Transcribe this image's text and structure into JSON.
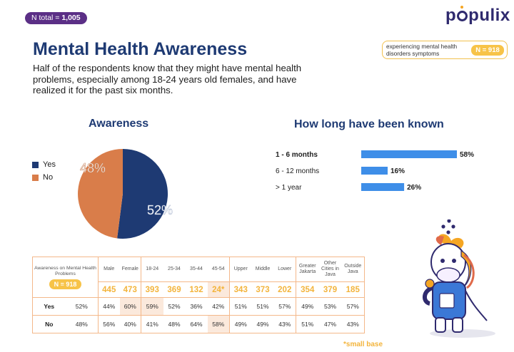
{
  "header": {
    "n_total_label": "N total = ",
    "n_total_value": "1,005",
    "logo": "populix",
    "title": "Mental Health Awareness",
    "subtitle": "Half of the respondents know that they might have mental health problems, especially among 18-24 years old females, and have realized it for the past six months.",
    "badge_text": "experiencing mental health disorders symptoms",
    "badge_n": "N = 918"
  },
  "colors": {
    "navy": "#1e3a73",
    "orange": "#d97d4a",
    "bar_blue": "#3e8ee8",
    "yellow": "#f7c348",
    "purple": "#5b2f86",
    "peach": "#fbe9dc"
  },
  "chart_data": [
    {
      "type": "pie",
      "title": "Awareness",
      "labels": [
        "Yes",
        "No"
      ],
      "values": [
        52,
        48
      ],
      "value_labels": [
        "52%",
        "48%"
      ],
      "colors": [
        "#1e3a73",
        "#d97d4a"
      ],
      "legend_position": "left"
    },
    {
      "type": "bar",
      "orientation": "horizontal",
      "title": "How long have been known",
      "categories": [
        "1 - 6 months",
        "6 - 12 months",
        "> 1 year"
      ],
      "values": [
        58,
        16,
        26
      ],
      "value_labels": [
        "58%",
        "16%",
        "26%"
      ],
      "xlim": [
        0,
        58
      ],
      "highlight_category": "1 - 6 months",
      "color": "#3e8ee8"
    },
    {
      "type": "table",
      "title": "Awareness on Mental Health Problems",
      "n_label": "N = 918",
      "columns": [
        "Male",
        "Female",
        "18-24",
        "25-34",
        "35-44",
        "45-54",
        "Upper",
        "Middle",
        "Lower",
        "Greater Jakarta",
        "Other Cities in Java",
        "Outside Java"
      ],
      "counts": [
        "445",
        "473",
        "393",
        "369",
        "132",
        "24*",
        "343",
        "373",
        "202",
        "354",
        "379",
        "185"
      ],
      "rows": [
        {
          "label": "Yes",
          "total": "52%",
          "values": [
            "44%",
            "60%",
            "59%",
            "52%",
            "36%",
            "42%",
            "51%",
            "51%",
            "57%",
            "49%",
            "53%",
            "57%"
          ]
        },
        {
          "label": "No",
          "total": "48%",
          "values": [
            "56%",
            "40%",
            "41%",
            "48%",
            "64%",
            "58%",
            "49%",
            "49%",
            "43%",
            "51%",
            "47%",
            "43%"
          ]
        }
      ],
      "footnote": "*small base"
    }
  ]
}
